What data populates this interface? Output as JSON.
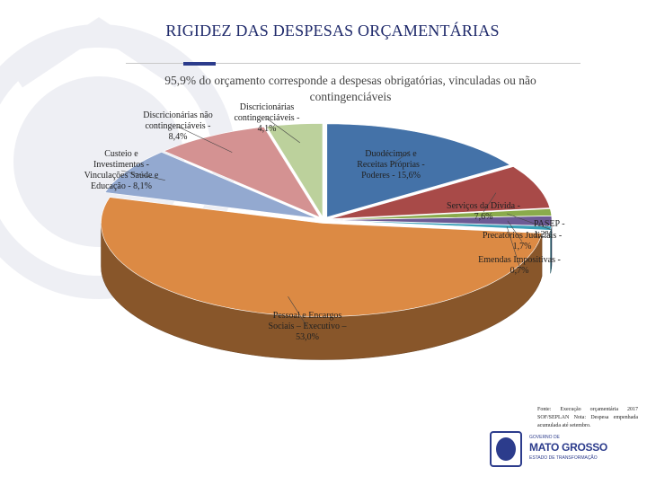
{
  "slide": {
    "title": "RIGIDEZ DAS DESPESAS ORÇAMENTÁRIAS",
    "subtitle": "95,9% do orçamento corresponde a despesas obrigatórias, vinculadas ou não contingenciáveis",
    "source": "Fonte: Execução orçamentária 2017 SOF/SEPLAN Nota: Despesa empenhada acumulada até setembro.",
    "logo": {
      "line1": "GOVERNO DE",
      "line2": "MATO GROSSO",
      "line3": "ESTADO DE TRANSFORMAÇÃO"
    }
  },
  "colors": {
    "title": "#1f2a6b",
    "accent": "#2c3c8c"
  },
  "chart_data": {
    "type": "pie",
    "style": "3d-exploded",
    "slices": [
      {
        "name": "Duodécimos e Receitas Próprias - Poderes",
        "value": 15.6,
        "label": "Duodécimos e Receitas Próprias - Poderes - 15,6%",
        "color": "#4472a8"
      },
      {
        "name": "Serviços da Dívida",
        "value": 7.6,
        "label": "Serviços da Dívida - 7,6%",
        "color": "#a84a48"
      },
      {
        "name": "PASEP",
        "value": 1.2,
        "label": "PASEP - 1,2%",
        "color": "#8aab4c"
      },
      {
        "name": "Precatórios Judiciais",
        "value": 1.7,
        "label": "Precatórios Judiciais - 1,7%",
        "color": "#6c5a94"
      },
      {
        "name": "Emendas Impositivas",
        "value": 0.7,
        "label": "Emendas Impositivas - 0,7%",
        "color": "#3aa0b8"
      },
      {
        "name": "Pessoal e Encargos Sociais – Executivo",
        "value": 53.0,
        "label": "Pessoal e Encargos Sociais – Executivo – 53,0%",
        "color": "#dc8a44"
      },
      {
        "name": "Custeio e Investimentos - Vinculações Saúde e Educação",
        "value": 8.1,
        "label": "Custeio e Investimentos - Vinculações Saúde e Educação - 8,1%",
        "color": "#93a9d0"
      },
      {
        "name": "Discricionárias não contingenciáveis",
        "value": 8.4,
        "label": "Discricionárias não contingenciáveis - 8,4%",
        "color": "#d49292"
      },
      {
        "name": "Discricionárias contingenciáveis",
        "value": 4.1,
        "label": "Discricionárias contingenciáveis - 4,1%",
        "color": "#bcd19c"
      }
    ]
  }
}
